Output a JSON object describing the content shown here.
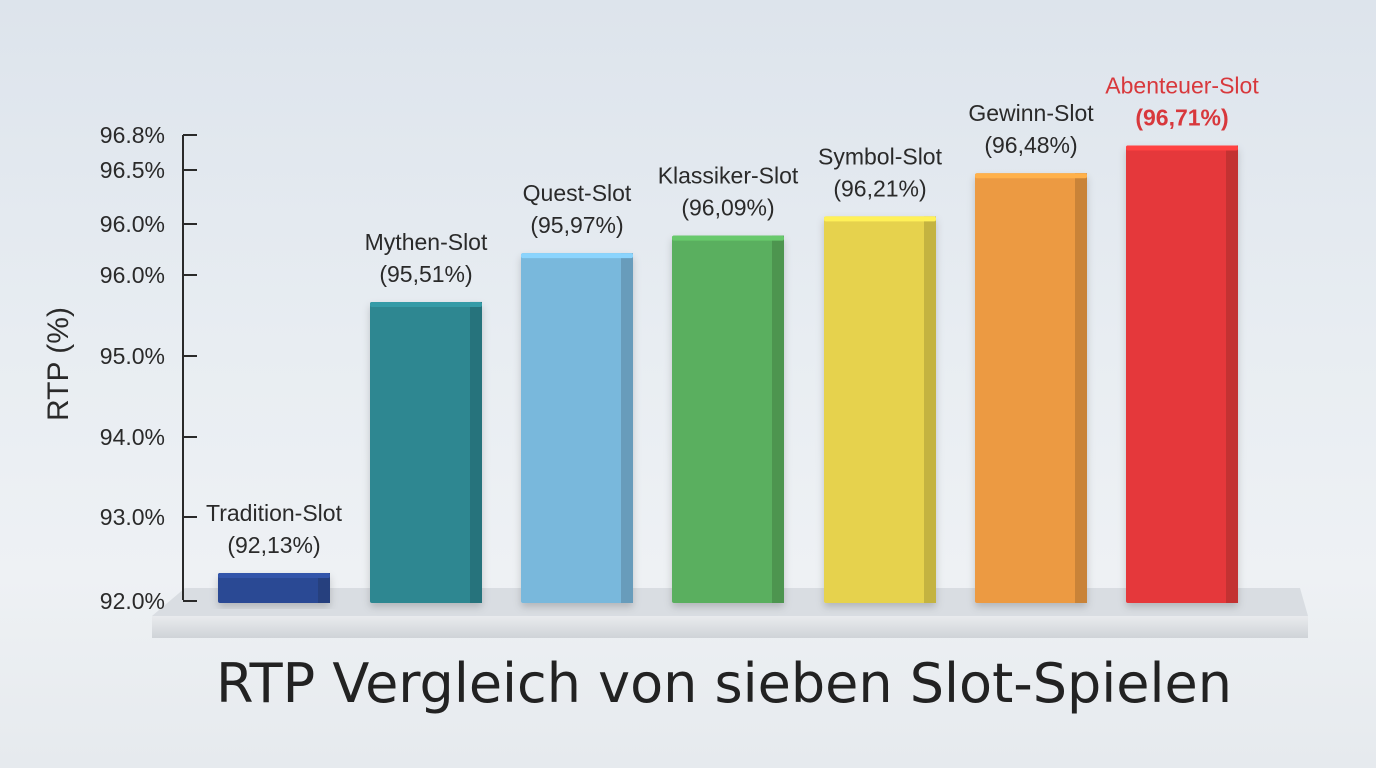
{
  "chart_data": {
    "type": "bar",
    "title": "RTP Vergleich von sieben Slot-Spielen",
    "ylabel": "RTP (%)",
    "xlabel": "",
    "categories": [
      "Tradition-Slot",
      "Mythen-Slot",
      "Quest-Slot",
      "Klassiker-Slot",
      "Symbol-Slot",
      "Gewinn-Slot",
      "Abenteuer-Slot"
    ],
    "values": [
      92.13,
      95.51,
      95.97,
      96.09,
      96.21,
      96.48,
      96.71
    ],
    "value_labels": [
      "(92,13%)",
      "(95,51%)",
      "(95,97%)",
      "(96,09%)",
      "(96,21%)",
      "(96,48%)",
      "(96,71%)"
    ],
    "y_ticks": [
      "92.0%",
      "93.0%",
      "94.0%",
      "95.0%",
      "96.0%",
      "96.0%",
      "96.5%",
      "96.8%"
    ],
    "y_tick_values": [
      92.0,
      93.0,
      94.0,
      95.0,
      96.0,
      96.0,
      96.5,
      96.8
    ],
    "colors": [
      "#2c4a94",
      "#2f8791",
      "#79b8dc",
      "#5aaf5e",
      "#e6d24d",
      "#ec9a42",
      "#e5393a"
    ],
    "highlight_color": "#d8383c",
    "highlight_index": 6,
    "grid": false,
    "legend": "none"
  }
}
